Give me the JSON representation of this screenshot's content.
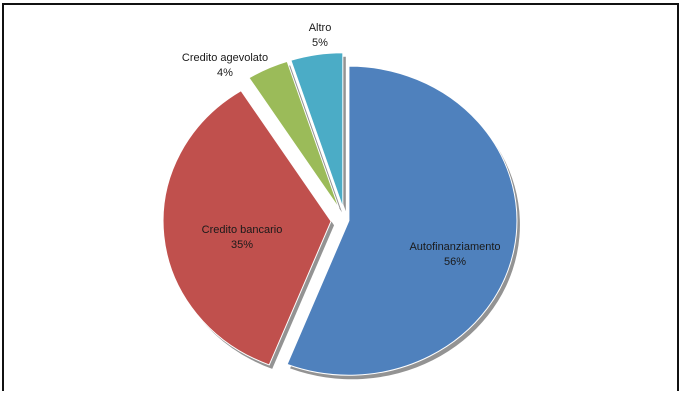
{
  "chart_data": {
    "type": "pie",
    "title": "",
    "slices": [
      {
        "label": "Autofinanziamento",
        "value": 56,
        "value_label": "56%",
        "color": "#4f81bd"
      },
      {
        "label": "Credito bancario",
        "value": 35,
        "value_label": "35%",
        "color": "#c0504d"
      },
      {
        "label": "Credito agevolato",
        "value": 4,
        "value_label": "4%",
        "color": "#9bbb59"
      },
      {
        "label": "Altro",
        "value": 5,
        "value_label": "5%",
        "color": "#4bacc6"
      }
    ],
    "exploded": true,
    "legend": "none",
    "data_labels": "category and percent"
  }
}
